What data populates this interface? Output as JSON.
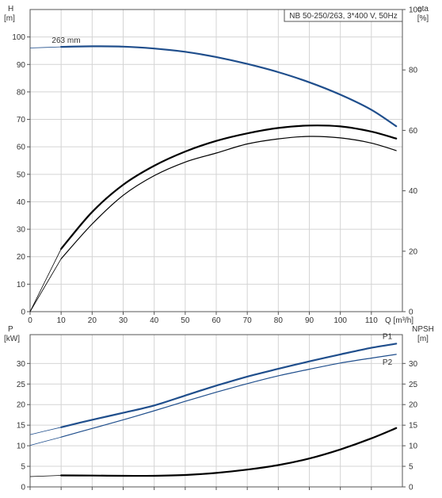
{
  "colors": {
    "blue": "#1f4e8c",
    "black": "#000000",
    "grid": "#d4d4d4",
    "frame": "#555555"
  },
  "chart_data": [
    {
      "type": "line",
      "title": "NB 50-250/263, 3*400 V, 50Hz",
      "xlabel": "Q [m³/h]",
      "xlim": [
        0,
        120
      ],
      "xticks": [
        0,
        10,
        20,
        30,
        40,
        50,
        60,
        70,
        80,
        90,
        100,
        110
      ],
      "y_left": {
        "label_top": "H",
        "label_unit": "[m]",
        "lim": [
          0,
          110
        ],
        "ticks": [
          0,
          10,
          20,
          30,
          40,
          50,
          60,
          70,
          80,
          90,
          100
        ]
      },
      "y_right": {
        "label_top": "eta",
        "label_unit": "[%]",
        "lim": [
          0,
          100
        ],
        "ticks": [
          0,
          20,
          40,
          60,
          80,
          100
        ]
      },
      "grid": true,
      "series": [
        {
          "name": "263 mm",
          "axis": "left",
          "color": "blue",
          "x": [
            0,
            10,
            20,
            30,
            40,
            50,
            60,
            70,
            80,
            90,
            100,
            110,
            118
          ],
          "y": [
            96,
            96.4,
            96.6,
            96.5,
            95.8,
            94.6,
            92.7,
            90.2,
            87.2,
            83.5,
            79,
            73.5,
            67.5
          ]
        },
        {
          "name": "",
          "axis": "right",
          "color": "black",
          "x": [
            0,
            10,
            20,
            30,
            40,
            50,
            60,
            70,
            80,
            90,
            100,
            110,
            118
          ],
          "y": [
            0,
            20.8,
            33,
            42,
            48.3,
            53,
            56.5,
            59,
            60.8,
            61.6,
            61.3,
            59.6,
            57.3
          ]
        },
        {
          "name": "",
          "axis": "right",
          "color": "black",
          "x": [
            0,
            10,
            20,
            30,
            40,
            50,
            60,
            70,
            80,
            90,
            100,
            110,
            118
          ],
          "y": [
            0,
            17.5,
            29,
            38.5,
            45,
            49.5,
            52.5,
            55.5,
            57.2,
            58,
            57.5,
            55.8,
            53.3
          ]
        }
      ]
    },
    {
      "type": "line",
      "xlim": [
        0,
        120
      ],
      "y_left": {
        "label_top": "P",
        "label_unit": "[kW]",
        "lim": [
          0,
          37
        ],
        "ticks": [
          0,
          5,
          10,
          15,
          20,
          25,
          30
        ]
      },
      "y_right": {
        "label_top": "NPSH",
        "label_unit": "[m]",
        "lim": [
          0,
          37
        ],
        "ticks": [
          0,
          5,
          10,
          15,
          20,
          25,
          30
        ]
      },
      "grid": true,
      "series": [
        {
          "name": "P1",
          "axis": "left",
          "color": "blue",
          "x": [
            0,
            10,
            20,
            30,
            40,
            50,
            60,
            70,
            80,
            90,
            100,
            110,
            118
          ],
          "y": [
            12.7,
            14.5,
            16.3,
            18,
            19.8,
            22.2,
            24.6,
            26.8,
            28.7,
            30.5,
            32.2,
            33.8,
            34.8
          ]
        },
        {
          "name": "P2",
          "axis": "left",
          "color": "blue",
          "x": [
            0,
            10,
            20,
            30,
            40,
            50,
            60,
            70,
            80,
            90,
            100,
            110,
            118
          ],
          "y": [
            10.1,
            12.1,
            14.2,
            16.3,
            18.5,
            20.8,
            23,
            25.1,
            27,
            28.6,
            30.1,
            31.3,
            32.2
          ]
        },
        {
          "name": "",
          "axis": "right",
          "color": "black",
          "x": [
            0,
            10,
            20,
            30,
            40,
            50,
            60,
            70,
            80,
            90,
            100,
            110,
            118
          ],
          "y": [
            2.5,
            2.8,
            2.75,
            2.7,
            2.7,
            2.9,
            3.4,
            4.2,
            5.3,
            6.9,
            9.1,
            11.8,
            14.3
          ]
        }
      ]
    }
  ]
}
